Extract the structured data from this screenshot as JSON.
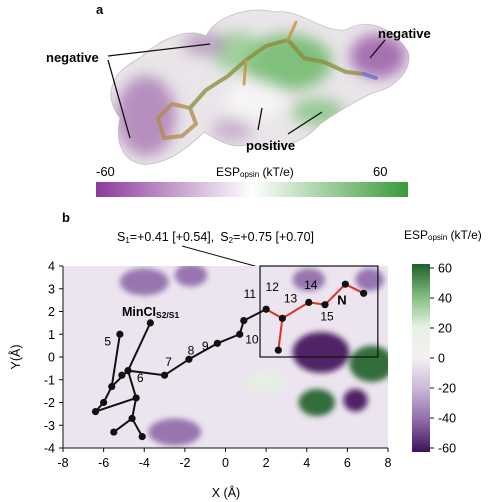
{
  "panel_a": {
    "label": "a",
    "annotations": {
      "negative_left": "negative",
      "negative_right": "negative",
      "positive": "positive"
    },
    "colorbar": {
      "min": -60,
      "max": 60,
      "min_label": "-60",
      "max_label": "60",
      "title_main": "ESP",
      "title_sub": "opsin",
      "title_unit": " (kT/e)",
      "colors": [
        "#8b3a9b",
        "#ffffff",
        "#3a9a3a"
      ]
    },
    "surface_colors": {
      "negative": "#9a5ea8",
      "neutral": "#eeeaee",
      "positive": "#7fc07a"
    }
  },
  "panel_b": {
    "label": "b",
    "coupling_note": {
      "s1_main": "S",
      "s1_sub": "1",
      "s1_val": "=+0.41 [+0.54],",
      "s2_main": "S",
      "s2_sub": "2",
      "s2_val": "=+0.75 [+0.70]"
    },
    "molecule_label": {
      "main": "MinCI",
      "sub": "S2/S1"
    },
    "nitrogen_label": "N",
    "colorbar": {
      "title_main": "ESP",
      "title_sub": "opsin",
      "title_unit": " (kT/e)",
      "min": -60,
      "max": 60,
      "ticks": [
        "60",
        "40",
        "20",
        "0",
        "-20",
        "-40",
        "-60"
      ],
      "colors": [
        "#1f5f2a",
        "#7fba7a",
        "#e6f1e3",
        "#f4f0f4",
        "#c9b6d8",
        "#8e6aa9",
        "#3f1158"
      ]
    },
    "bond_colors": {
      "black": "#111111",
      "red": "#e0301e"
    }
  },
  "chart_data": {
    "type": "scatter",
    "title": "",
    "xlabel": "X (Å)",
    "ylabel": "Y(Å)",
    "xlim": [
      -8,
      8
    ],
    "ylim": [
      -4,
      4
    ],
    "xticks": [
      "-8",
      "-6",
      "-4",
      "-2",
      "0",
      "2",
      "4",
      "6",
      "8"
    ],
    "yticks": [
      "4",
      "3",
      "2",
      "1",
      "0",
      "-1",
      "-2",
      "-3",
      "-4"
    ],
    "atom_numbers": [
      {
        "label": "5",
        "x": -5.8,
        "y": 0.5
      },
      {
        "label": "6",
        "x": -4.2,
        "y": -1.1
      },
      {
        "label": "7",
        "x": -2.8,
        "y": -0.4
      },
      {
        "label": "8",
        "x": -1.7,
        "y": 0.1
      },
      {
        "label": "9",
        "x": -1.0,
        "y": 0.3
      },
      {
        "label": "10",
        "x": 1.3,
        "y": 0.6
      },
      {
        "label": "11",
        "x": 1.2,
        "y": 2.6
      },
      {
        "label": "12",
        "x": 2.3,
        "y": 2.9
      },
      {
        "label": "13",
        "x": 3.2,
        "y": 2.4
      },
      {
        "label": "14",
        "x": 4.2,
        "y": 3.0
      },
      {
        "label": "15",
        "x": 5.0,
        "y": 1.6
      }
    ],
    "black_atoms": [
      {
        "x": -6.4,
        "y": -2.4
      },
      {
        "x": -6.0,
        "y": -2.0
      },
      {
        "x": -5.6,
        "y": -1.3
      },
      {
        "x": -5.1,
        "y": -0.8
      },
      {
        "x": -4.8,
        "y": -0.6
      },
      {
        "x": -5.5,
        "y": -3.3
      },
      {
        "x": -4.6,
        "y": -2.7
      },
      {
        "x": -4.1,
        "y": -3.5
      },
      {
        "x": -4.4,
        "y": -1.8
      },
      {
        "x": -5.2,
        "y": 1.0
      },
      {
        "x": -3.7,
        "y": 1.5
      },
      {
        "x": -3.0,
        "y": -0.8
      },
      {
        "x": -1.8,
        "y": -0.1
      },
      {
        "x": -0.4,
        "y": 0.6
      },
      {
        "x": 0.7,
        "y": 1.0
      },
      {
        "x": 0.9,
        "y": 1.6
      }
    ],
    "black_bonds": [
      [
        -6.4,
        -2.4,
        -6.0,
        -2.0
      ],
      [
        -6.0,
        -2.0,
        -5.6,
        -1.3
      ],
      [
        -5.6,
        -1.3,
        -4.8,
        -0.6
      ],
      [
        -4.8,
        -0.6,
        -4.4,
        -1.8
      ],
      [
        -4.4,
        -1.8,
        -6.4,
        -2.4
      ],
      [
        -4.4,
        -1.8,
        -4.6,
        -2.7
      ],
      [
        -4.6,
        -2.7,
        -5.5,
        -3.3
      ],
      [
        -4.6,
        -2.7,
        -4.1,
        -3.5
      ],
      [
        -5.6,
        -1.3,
        -5.2,
        1.0
      ],
      [
        -4.8,
        -0.6,
        -3.7,
        1.5
      ],
      [
        -4.8,
        -0.6,
        -3.0,
        -0.8
      ],
      [
        -3.0,
        -0.8,
        -1.8,
        -0.1
      ],
      [
        -1.8,
        -0.1,
        -0.4,
        0.6
      ],
      [
        -0.4,
        0.6,
        0.7,
        1.0
      ],
      [
        0.7,
        1.0,
        0.9,
        1.6
      ],
      [
        0.9,
        1.6,
        2.0,
        2.1
      ]
    ],
    "red_atoms": [
      {
        "x": 2.0,
        "y": 2.1
      },
      {
        "x": 2.8,
        "y": 1.7
      },
      {
        "x": 2.6,
        "y": 0.3
      },
      {
        "x": 4.1,
        "y": 2.4
      },
      {
        "x": 4.9,
        "y": 2.3
      },
      {
        "x": 5.9,
        "y": 3.2
      },
      {
        "x": 6.8,
        "y": 2.8
      }
    ],
    "red_bonds": [
      [
        2.0,
        2.1,
        2.8,
        1.7
      ],
      [
        2.8,
        1.7,
        2.6,
        0.3
      ],
      [
        2.8,
        1.7,
        4.1,
        2.4
      ],
      [
        4.1,
        2.4,
        4.9,
        2.3
      ],
      [
        4.9,
        2.3,
        5.9,
        3.2
      ],
      [
        5.9,
        3.2,
        6.8,
        2.8
      ]
    ],
    "highlight_box": {
      "x0": 1.7,
      "x1": 7.5,
      "y0": 0.0,
      "y1": 4.0
    },
    "background_blobs": [
      {
        "x": 4.7,
        "y": 0.2,
        "rx": 1.4,
        "ry": 0.9,
        "value": -60
      },
      {
        "x": 7.2,
        "y": -0.3,
        "rx": 1.1,
        "ry": 0.8,
        "value": 60
      },
      {
        "x": 4.5,
        "y": -2.0,
        "rx": 0.9,
        "ry": 0.6,
        "value": 55
      },
      {
        "x": 6.4,
        "y": -1.9,
        "rx": 0.6,
        "ry": 0.5,
        "value": -50
      },
      {
        "x": -4.0,
        "y": 3.3,
        "rx": 1.2,
        "ry": 0.6,
        "value": -35
      },
      {
        "x": -1.7,
        "y": 3.6,
        "rx": 0.8,
        "ry": 0.5,
        "value": -40
      },
      {
        "x": 4.1,
        "y": 3.4,
        "rx": 0.8,
        "ry": 0.5,
        "value": -35
      },
      {
        "x": 2.0,
        "y": -1.1,
        "rx": 0.9,
        "ry": 0.5,
        "value": 25
      },
      {
        "x": 7.1,
        "y": 3.4,
        "rx": 0.7,
        "ry": 0.5,
        "value": -35
      },
      {
        "x": -2.5,
        "y": -3.3,
        "rx": 1.3,
        "ry": 0.6,
        "value": -30
      }
    ]
  }
}
